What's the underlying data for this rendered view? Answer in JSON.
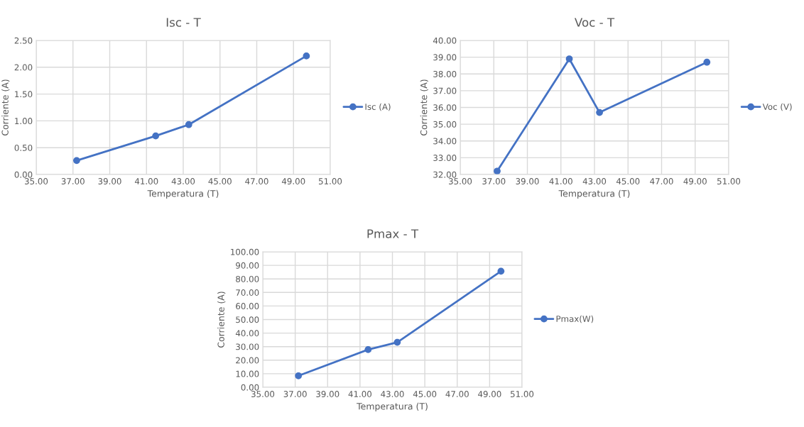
{
  "chart_data": [
    {
      "type": "line",
      "title": "Isc - T",
      "xlabel": "Temperatura (T)",
      "ylabel": "Corriente (A)",
      "x": [
        37.2,
        41.5,
        43.3,
        49.7
      ],
      "series": [
        {
          "name": "Isc (A)",
          "color": "#4472c4",
          "values": [
            0.26,
            0.72,
            0.93,
            2.21
          ]
        }
      ],
      "xlim": [
        35,
        51
      ],
      "xticks": [
        {
          "value": 35,
          "label": "35.00"
        },
        {
          "value": 37,
          "label": "37.00"
        },
        {
          "value": 39,
          "label": "39.00"
        },
        {
          "value": 41,
          "label": "41.00"
        },
        {
          "value": 43,
          "label": "43.00"
        },
        {
          "value": 45,
          "label": "45.00"
        },
        {
          "value": 47,
          "label": "47.00"
        },
        {
          "value": 49,
          "label": "49.00"
        },
        {
          "value": 51,
          "label": "51.00"
        }
      ],
      "ylim": [
        0,
        2.5
      ],
      "yticks": [
        {
          "value": 0,
          "label": "0.00"
        },
        {
          "value": 0.5,
          "label": "0.50"
        },
        {
          "value": 1,
          "label": "1.00"
        },
        {
          "value": 1.5,
          "label": "1.50"
        },
        {
          "value": 2,
          "label": "2.00"
        },
        {
          "value": 2.5,
          "label": "2.50"
        }
      ],
      "grid": true,
      "legend": "right",
      "marker": "circle",
      "line_style": "solid"
    },
    {
      "type": "line",
      "title": "Voc - T",
      "xlabel": "Temperatura (T)",
      "ylabel": "Corriente (A)",
      "x": [
        37.2,
        41.5,
        43.3,
        49.7
      ],
      "series": [
        {
          "name": "Voc (V)",
          "color": "#4472c4",
          "values": [
            32.2,
            38.9,
            35.7,
            38.7
          ]
        }
      ],
      "xlim": [
        35,
        51
      ],
      "xticks": [
        {
          "value": 35,
          "label": "35.00"
        },
        {
          "value": 37,
          "label": "37.00"
        },
        {
          "value": 39,
          "label": "39.00"
        },
        {
          "value": 41,
          "label": "41.00"
        },
        {
          "value": 43,
          "label": "43.00"
        },
        {
          "value": 45,
          "label": "45.00"
        },
        {
          "value": 47,
          "label": "47.00"
        },
        {
          "value": 49,
          "label": "49.00"
        },
        {
          "value": 51,
          "label": "51.00"
        }
      ],
      "ylim": [
        32,
        40
      ],
      "yticks": [
        {
          "value": 32,
          "label": "32.00"
        },
        {
          "value": 33,
          "label": "33.00"
        },
        {
          "value": 34,
          "label": "34.00"
        },
        {
          "value": 35,
          "label": "35.00"
        },
        {
          "value": 36,
          "label": "36.00"
        },
        {
          "value": 37,
          "label": "37.00"
        },
        {
          "value": 38,
          "label": "38.00"
        },
        {
          "value": 39,
          "label": "39.00"
        },
        {
          "value": 40,
          "label": "40.00"
        }
      ],
      "grid": true,
      "legend": "right",
      "marker": "circle",
      "line_style": "solid"
    },
    {
      "type": "line",
      "title": "Pmax - T",
      "xlabel": "Temperatura (T)",
      "ylabel": "Corriente (A)",
      "x": [
        37.2,
        41.5,
        43.3,
        49.7
      ],
      "series": [
        {
          "name": "Pmax(W)",
          "color": "#4472c4",
          "values": [
            8.5,
            27.8,
            33.2,
            85.7
          ]
        }
      ],
      "xlim": [
        35,
        51
      ],
      "xticks": [
        {
          "value": 35,
          "label": "35.00"
        },
        {
          "value": 37,
          "label": "37.00"
        },
        {
          "value": 39,
          "label": "39.00"
        },
        {
          "value": 41,
          "label": "41.00"
        },
        {
          "value": 43,
          "label": "43.00"
        },
        {
          "value": 45,
          "label": "45.00"
        },
        {
          "value": 47,
          "label": "47.00"
        },
        {
          "value": 49,
          "label": "49.00"
        },
        {
          "value": 51,
          "label": "51.00"
        }
      ],
      "ylim": [
        0,
        100
      ],
      "yticks": [
        {
          "value": 0,
          "label": "0.00"
        },
        {
          "value": 10,
          "label": "10.00"
        },
        {
          "value": 20,
          "label": "20.00"
        },
        {
          "value": 30,
          "label": "30.00"
        },
        {
          "value": 40,
          "label": "40.00"
        },
        {
          "value": 50,
          "label": "50.00"
        },
        {
          "value": 60,
          "label": "60.00"
        },
        {
          "value": 70,
          "label": "70.00"
        },
        {
          "value": 80,
          "label": "80.00"
        },
        {
          "value": 90,
          "label": "90.00"
        },
        {
          "value": 100,
          "label": "100.00"
        }
      ],
      "grid": true,
      "legend": "right",
      "marker": "circle",
      "line_style": "solid"
    }
  ]
}
